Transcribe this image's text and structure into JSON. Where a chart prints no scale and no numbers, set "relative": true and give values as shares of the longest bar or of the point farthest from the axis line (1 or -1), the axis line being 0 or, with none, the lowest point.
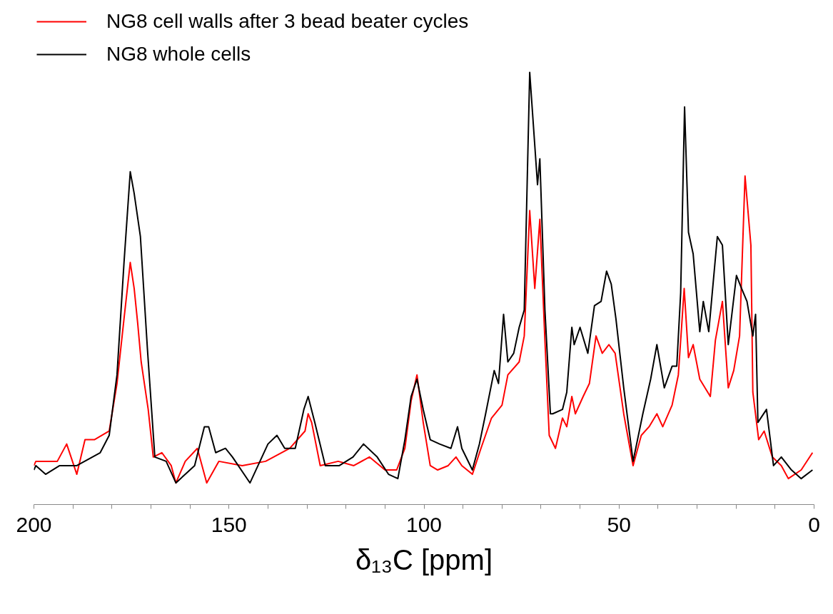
{
  "chart_data": {
    "type": "line",
    "xlabel": "δ₁₃C [ppm]",
    "relative": true,
    "xlim": [
      200,
      0
    ],
    "xticks": [
      200,
      {
        "value": 190,
        "label": null
      },
      {
        "value": 180,
        "label": null
      },
      {
        "value": 170,
        "label": null
      },
      {
        "value": 160,
        "label": null
      },
      150,
      {
        "value": 140,
        "label": null
      },
      {
        "value": 130,
        "label": null
      },
      {
        "value": 120,
        "label": null
      },
      {
        "value": 110,
        "label": null
      },
      100,
      {
        "value": 90,
        "label": null
      },
      {
        "value": 80,
        "label": null
      },
      {
        "value": 70,
        "label": null
      },
      {
        "value": 60,
        "label": null
      },
      50,
      {
        "value": 40,
        "label": null
      },
      {
        "value": 30,
        "label": null
      },
      {
        "value": 20,
        "label": null
      },
      {
        "value": 10,
        "label": null
      },
      0
    ],
    "grid": false,
    "legend": "top left",
    "marker": "none",
    "line_style": "solid",
    "tick_labels": "x",
    "series": [
      {
        "name": "NG8 cell walls after 3 bead beater cycles",
        "color": "#ff0000",
        "x": [
          200,
          199.5,
          194,
          191.6,
          189,
          186.9,
          184.5,
          180.7,
          178.7,
          176.9,
          175.3,
          174.3,
          173.4,
          172.5,
          170.7,
          169.4,
          167.2,
          164.8,
          163.6,
          161.2,
          158.1,
          155.7,
          152.6,
          146.6,
          140.6,
          134.4,
          130.5,
          129.7,
          128.8,
          126.6,
          122,
          118,
          114,
          110,
          107,
          104.9,
          103.3,
          101.8,
          100.2,
          98.4,
          96.5,
          93.8,
          91.8,
          90.3,
          87.6,
          85.4,
          82.7,
          80,
          78.5,
          75.6,
          74.3,
          72.9,
          71.6,
          70.3,
          69,
          67.9,
          66.3,
          64.5,
          63.4,
          62.1,
          61.2,
          59.2,
          57.6,
          55.9,
          54.3,
          52.6,
          51,
          48.8,
          46.4,
          44.3,
          42.3,
          40.3,
          38.8,
          36.4,
          34.8,
          33.3,
          32.2,
          31,
          29.3,
          26.6,
          25.3,
          23.5,
          22,
          20.6,
          19.1,
          17.7,
          16.2,
          15.7,
          14.2,
          12.8,
          10.7,
          8.4,
          6.6,
          3.3,
          0.4
        ],
        "values": [
          0.09,
          0.1,
          0.1,
          0.14,
          0.07,
          0.15,
          0.15,
          0.17,
          0.28,
          0.43,
          0.56,
          0.5,
          0.42,
          0.33,
          0.22,
          0.11,
          0.12,
          0.09,
          0.05,
          0.1,
          0.13,
          0.05,
          0.1,
          0.09,
          0.1,
          0.13,
          0.17,
          0.21,
          0.19,
          0.09,
          0.1,
          0.09,
          0.11,
          0.08,
          0.08,
          0.13,
          0.24,
          0.3,
          0.19,
          0.09,
          0.08,
          0.09,
          0.11,
          0.09,
          0.07,
          0.13,
          0.2,
          0.23,
          0.3,
          0.33,
          0.39,
          0.68,
          0.5,
          0.66,
          0.38,
          0.16,
          0.13,
          0.2,
          0.18,
          0.25,
          0.21,
          0.25,
          0.28,
          0.39,
          0.35,
          0.37,
          0.35,
          0.21,
          0.09,
          0.16,
          0.18,
          0.21,
          0.18,
          0.23,
          0.3,
          0.5,
          0.34,
          0.37,
          0.29,
          0.25,
          0.38,
          0.47,
          0.27,
          0.31,
          0.39,
          0.76,
          0.6,
          0.26,
          0.15,
          0.17,
          0.11,
          0.09,
          0.06,
          0.08,
          0.12
        ]
      },
      {
        "name": "NG8 whole cells",
        "color": "#000000",
        "x": [
          200,
          199.5,
          197,
          193.4,
          189,
          183,
          180.7,
          178.7,
          176.9,
          175.3,
          174.3,
          172.7,
          170.9,
          169,
          166.1,
          163.6,
          158.8,
          156.3,
          155.2,
          153.4,
          150.9,
          149.1,
          144.6,
          140,
          137.7,
          135.7,
          133,
          130.8,
          129.7,
          128,
          125.3,
          121.7,
          118.2,
          115.5,
          112,
          109.1,
          106.7,
          104.9,
          103.3,
          101.8,
          100.2,
          98.4,
          96,
          93.1,
          91.4,
          90.3,
          87.6,
          85.8,
          84.2,
          82,
          80.9,
          79.6,
          78.5,
          77,
          75.6,
          74.3,
          72.9,
          70.9,
          70.3,
          69,
          67.6,
          67,
          64.5,
          63.4,
          62.1,
          61.5,
          60,
          58,
          56.3,
          54.6,
          53.2,
          52,
          50.8,
          48.8,
          46.4,
          43.9,
          41.9,
          40.3,
          38.4,
          36.4,
          35.2,
          34.2,
          33.2,
          32.2,
          31,
          29.3,
          28.4,
          27,
          24.8,
          23.5,
          22,
          19.9,
          18.6,
          17.2,
          15.7,
          15,
          14.4,
          12.2,
          10.4,
          8.4,
          5.8,
          3.3,
          0.4
        ],
        "values": [
          0.08,
          0.09,
          0.07,
          0.09,
          0.09,
          0.12,
          0.16,
          0.3,
          0.56,
          0.77,
          0.72,
          0.62,
          0.36,
          0.11,
          0.1,
          0.05,
          0.09,
          0.18,
          0.18,
          0.12,
          0.13,
          0.11,
          0.05,
          0.14,
          0.16,
          0.13,
          0.13,
          0.22,
          0.25,
          0.19,
          0.09,
          0.09,
          0.11,
          0.14,
          0.11,
          0.07,
          0.06,
          0.15,
          0.25,
          0.29,
          0.22,
          0.15,
          0.14,
          0.13,
          0.18,
          0.13,
          0.08,
          0.14,
          0.21,
          0.31,
          0.28,
          0.44,
          0.33,
          0.35,
          0.41,
          0.45,
          1.0,
          0.74,
          0.8,
          0.45,
          0.21,
          0.21,
          0.22,
          0.26,
          0.41,
          0.37,
          0.41,
          0.35,
          0.46,
          0.47,
          0.54,
          0.51,
          0.43,
          0.27,
          0.1,
          0.21,
          0.29,
          0.37,
          0.27,
          0.32,
          0.32,
          0.49,
          0.92,
          0.63,
          0.58,
          0.4,
          0.47,
          0.4,
          0.62,
          0.6,
          0.37,
          0.53,
          0.5,
          0.47,
          0.39,
          0.44,
          0.19,
          0.22,
          0.09,
          0.11,
          0.08,
          0.06,
          0.08
        ]
      }
    ]
  }
}
